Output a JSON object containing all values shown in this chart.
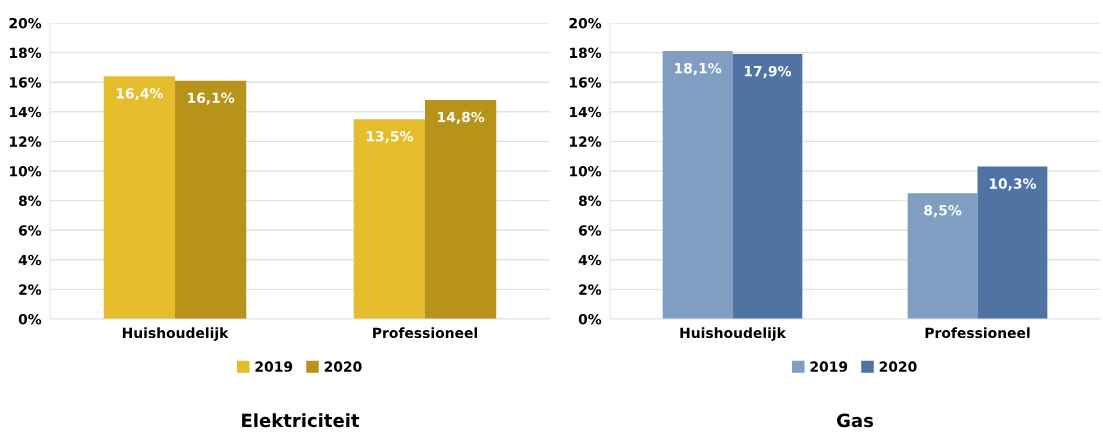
{
  "chart_data": [
    {
      "type": "bar",
      "title": "Elektriciteit",
      "categories": [
        "Huishoudelijk",
        "Professioneel"
      ],
      "series": [
        {
          "name": "2019",
          "color": "#e5bc2b",
          "values": [
            16.4,
            13.5
          ],
          "value_labels": [
            "16,4%",
            "13,5%"
          ]
        },
        {
          "name": "2020",
          "color": "#b79419",
          "values": [
            16.1,
            14.8
          ],
          "value_labels": [
            "16,1%",
            "14,8%"
          ]
        }
      ],
      "ylim": [
        0,
        20
      ],
      "yticks": [
        {
          "value": 0,
          "label": "0%"
        },
        {
          "value": 2,
          "label": "2%"
        },
        {
          "value": 4,
          "label": "4%"
        },
        {
          "value": 6,
          "label": "6%"
        },
        {
          "value": 8,
          "label": "8%"
        },
        {
          "value": 10,
          "label": "10%"
        },
        {
          "value": 12,
          "label": "12%"
        },
        {
          "value": 14,
          "label": "14%"
        },
        {
          "value": 16,
          "label": "16%"
        },
        {
          "value": 18,
          "label": "18%"
        },
        {
          "value": 20,
          "label": "20%"
        }
      ],
      "grid": "y",
      "legend": "bottom"
    },
    {
      "type": "bar",
      "title": "Gas",
      "categories": [
        "Huishoudelijk",
        "Professioneel"
      ],
      "series": [
        {
          "name": "2019",
          "color": "#7f9ec2",
          "values": [
            18.1,
            8.5
          ],
          "value_labels": [
            "18,1%",
            "8,5%"
          ]
        },
        {
          "name": "2020",
          "color": "#4f73a2",
          "values": [
            17.9,
            10.3
          ],
          "value_labels": [
            "17,9%",
            "10,3%"
          ]
        }
      ],
      "ylim": [
        0,
        20
      ],
      "yticks": [
        {
          "value": 0,
          "label": "0%"
        },
        {
          "value": 2,
          "label": "2%"
        },
        {
          "value": 4,
          "label": "4%"
        },
        {
          "value": 6,
          "label": "6%"
        },
        {
          "value": 8,
          "label": "8%"
        },
        {
          "value": 10,
          "label": "10%"
        },
        {
          "value": 12,
          "label": "12%"
        },
        {
          "value": 14,
          "label": "14%"
        },
        {
          "value": 16,
          "label": "16%"
        },
        {
          "value": 18,
          "label": "18%"
        },
        {
          "value": 20,
          "label": "20%"
        }
      ],
      "grid": "y",
      "legend": "bottom"
    }
  ]
}
